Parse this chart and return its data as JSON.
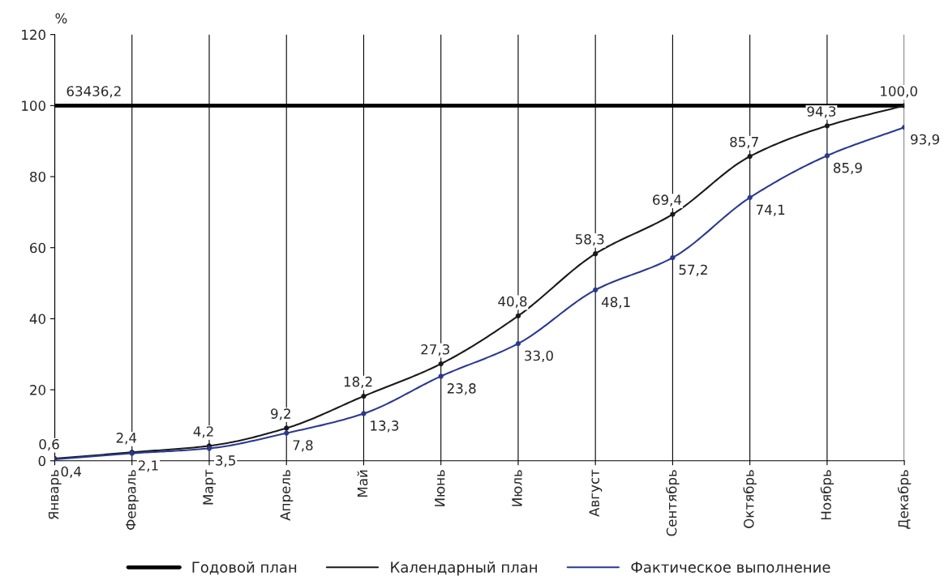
{
  "chart_data": {
    "type": "line",
    "ylabel": "%",
    "categories": [
      "Январь",
      "Февраль",
      "Март",
      "Апрель",
      "Май",
      "Июнь",
      "Июль",
      "Август",
      "Сентябрь",
      "Октябрь",
      "Ноябрь",
      "Декабрь"
    ],
    "series": [
      {
        "name": "Годовой план",
        "color": "#000000",
        "marker": "none",
        "values": [
          100,
          100,
          100,
          100,
          100,
          100,
          100,
          100,
          100,
          100,
          100,
          100
        ]
      },
      {
        "name": "Календарный план",
        "color": "#1a1a1a",
        "marker": "circle",
        "values": [
          0.6,
          2.4,
          4.2,
          9.2,
          18.2,
          27.3,
          40.8,
          58.3,
          69.4,
          85.7,
          94.3,
          100.0
        ],
        "value_labels": [
          "0,6",
          "2,4",
          "4,2",
          "9,2",
          "18,2",
          "27,3",
          "40,8",
          "58,3",
          "69,4",
          "85,7",
          "94,3",
          "100,0"
        ]
      },
      {
        "name": "Фактическое выполнение",
        "color": "#2b3990",
        "marker": "circle",
        "values": [
          0.4,
          2.1,
          3.5,
          7.8,
          13.3,
          23.8,
          33.0,
          48.1,
          57.2,
          74.1,
          85.9,
          93.9
        ],
        "value_labels": [
          "0,4",
          "2,1",
          "3,5",
          "7,8",
          "13,3",
          "23,8",
          "33,0",
          "48,1",
          "57,2",
          "74,1",
          "85,9",
          "93,9"
        ]
      }
    ],
    "annotations": [
      {
        "text": "63436,2",
        "x": "Январь",
        "y": 100
      }
    ],
    "ylim": [
      0,
      120
    ],
    "yticks": [
      0,
      20,
      40,
      60,
      80,
      100,
      120
    ],
    "grid": "x",
    "legend": "bottom"
  }
}
